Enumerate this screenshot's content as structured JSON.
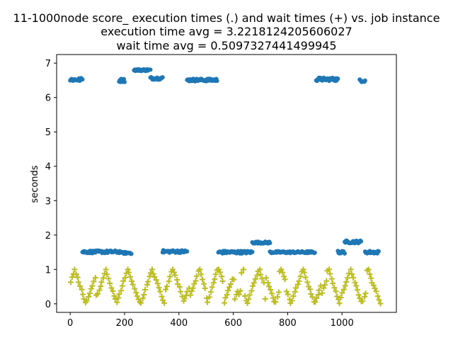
{
  "chart_data": {
    "type": "scatter",
    "title_lines": [
      "11-1000node score_ execution times (.) and wait times (+) vs. job instance",
      "execution time avg = 3.2218124205606027",
      "wait time avg = 0.5097327441499945"
    ],
    "xlabel": "",
    "ylabel": "seconds",
    "xlim": [
      -50,
      1200
    ],
    "ylim": [
      -0.25,
      7.25
    ],
    "xticks": [
      0,
      200,
      400,
      600,
      800,
      1000
    ],
    "yticks": [
      0,
      1,
      2,
      3,
      4,
      5,
      6,
      7
    ],
    "grid": false,
    "colors": {
      "execution": "#1f77b4",
      "wait": "#bcbd22"
    },
    "series": [
      {
        "marker": "dot",
        "clusters": [
          {
            "x_range": [
              0,
              45
            ],
            "y": 6.52,
            "jitter": 0.05
          },
          {
            "x_range": [
              180,
              200
            ],
            "y": 6.5,
            "jitter": 0.05
          },
          {
            "x_range": [
              235,
              295
            ],
            "y": 6.8,
            "jitter": 0.03
          },
          {
            "x_range": [
              295,
              340
            ],
            "y": 6.56,
            "jitter": 0.04
          },
          {
            "x_range": [
              430,
              540
            ],
            "y": 6.51,
            "jitter": 0.04
          },
          {
            "x_range": [
              905,
              985
            ],
            "y": 6.53,
            "jitter": 0.05
          },
          {
            "x_range": [
              1065,
              1085
            ],
            "y": 6.49,
            "jitter": 0.04
          },
          {
            "x_range": [
              45,
              185
            ],
            "y": 1.51,
            "jitter": 0.04
          },
          {
            "x_range": [
              190,
              225
            ],
            "y": 1.48,
            "jitter": 0.03
          },
          {
            "x_range": [
              340,
              430
            ],
            "y": 1.52,
            "jitter": 0.04
          },
          {
            "x_range": [
              545,
              670
            ],
            "y": 1.5,
            "jitter": 0.04
          },
          {
            "x_range": [
              670,
              735
            ],
            "y": 1.78,
            "jitter": 0.03
          },
          {
            "x_range": [
              735,
              900
            ],
            "y": 1.5,
            "jitter": 0.03
          },
          {
            "x_range": [
              985,
              1010
            ],
            "y": 1.5,
            "jitter": 0.04
          },
          {
            "x_range": [
              1010,
              1070
            ],
            "y": 1.8,
            "jitter": 0.04
          },
          {
            "x_range": [
              1085,
              1135
            ],
            "y": 1.5,
            "jitter": 0.04
          }
        ]
      },
      {
        "marker": "plus",
        "y_range": [
          0.0,
          1.0
        ],
        "x_range": [
          0,
          1140
        ]
      }
    ]
  }
}
